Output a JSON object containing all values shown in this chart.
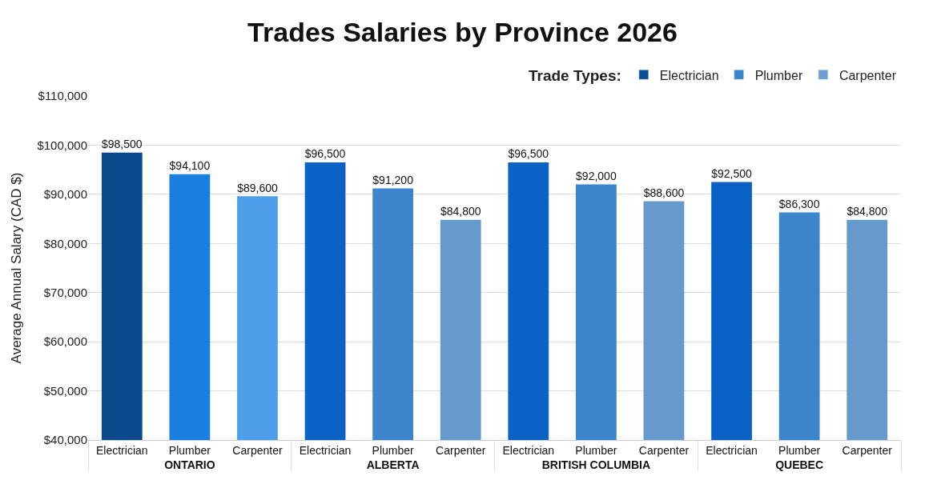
{
  "chart_data": {
    "type": "bar",
    "title": "Trades Salaries by Province 2026",
    "ylabel": "Average Annual Salary (CAD $)",
    "legend_title": "Trade Types:",
    "legend": "top right",
    "grid": "y",
    "categories": [
      "ONTARIO",
      "ALBERTA",
      "BRITISH COLUMBIA",
      "QUEBEC"
    ],
    "ylim": [
      40000,
      110000
    ],
    "yticks": [
      {
        "value": 40000,
        "label": "$40,000"
      },
      {
        "value": 50000,
        "label": "$50,000"
      },
      {
        "value": 60000,
        "label": "$60,000"
      },
      {
        "value": 70000,
        "label": "$70,000"
      },
      {
        "value": 80000,
        "label": "$80,000"
      },
      {
        "value": 90000,
        "label": "$90,000"
      },
      {
        "value": 100000,
        "label": "$100,000"
      },
      {
        "value": 110000,
        "label": "$110,000"
      }
    ],
    "series": [
      {
        "name": "Electrician",
        "color": "#0b4f93",
        "colors": [
          "#0a4a8c",
          "#0a63c4",
          "#0a63c4",
          "#0a63c4"
        ],
        "values": [
          98500,
          96500,
          96500,
          92500
        ],
        "value_labels": [
          "$98,500",
          "$96,500",
          "$96,500",
          "$92,500"
        ]
      },
      {
        "name": "Plumber",
        "color": "#3a86cc",
        "colors": [
          "#1a7de0",
          "#3a85cc",
          "#3a85cc",
          "#3a85cc"
        ],
        "values": [
          94100,
          91200,
          92000,
          86300
        ],
        "value_labels": [
          "$94,100",
          "$91,200",
          "$92,000",
          "$86,300"
        ]
      },
      {
        "name": "Carpenter",
        "color": "#6a9fd4",
        "colors": [
          "#4c9fe8",
          "#6699cc",
          "#6699cc",
          "#6699cc"
        ],
        "values": [
          89600,
          84800,
          88600,
          84800
        ],
        "value_labels": [
          "$89,600",
          "$84,800",
          "$88,600",
          "$84,800"
        ]
      }
    ]
  }
}
